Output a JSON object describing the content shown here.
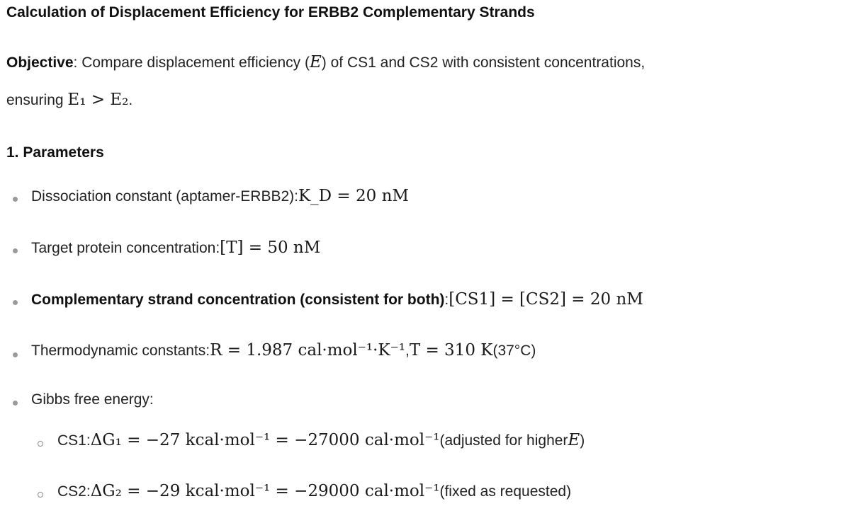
{
  "title": "Calculation of Displacement Efficiency for ERBB2 Complementary Strands",
  "objective": {
    "label": "Objective",
    "text_before": ": Compare displacement efficiency (",
    "symbol": "E",
    "text_after": ") of CS1 and CS2 with consistent concentrations,",
    "line2_prefix": "ensuring",
    "line2_math": "E₁ > E₂",
    "line2_suffix": "."
  },
  "section1": {
    "heading": "1. Parameters",
    "items": [
      {
        "label": "Dissociation constant (aptamer-ERBB2): ",
        "math": "K_D = 20 nM"
      },
      {
        "label": "Target protein concentration: ",
        "math": "[T] = 50 nM"
      },
      {
        "label_bold": "Complementary strand concentration (consistent for both)",
        "label_after": ": ",
        "math": "[CS1] = [CS2] = 20 nM"
      },
      {
        "label": "Thermodynamic constants: ",
        "math_R": "R = 1.987 cal·mol⁻¹·K⁻¹",
        "separator": ", ",
        "math_T": "T = 310 K",
        "suffix": " (37°C)"
      },
      {
        "label": "Gibbs free energy:"
      }
    ],
    "subitems": [
      {
        "label": "CS1: ",
        "math": "ΔG₁ = −27 kcal·mol⁻¹ = −27000 cal·mol⁻¹",
        "note_before": " (adjusted for higher ",
        "note_symbol": "E",
        "note_after": ")"
      },
      {
        "label": "CS2: ",
        "math": "ΔG₂ = −29 kcal·mol⁻¹ = −29000 cal·mol⁻¹",
        "note": " (fixed as requested)"
      }
    ]
  }
}
